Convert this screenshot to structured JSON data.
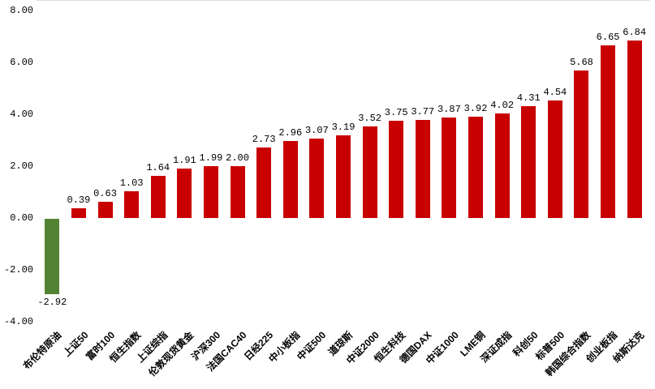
{
  "chart_data": {
    "type": "bar",
    "title": "",
    "xlabel": "",
    "ylabel": "",
    "categories": [
      "布伦特原油",
      "上证50",
      "富时100",
      "恒生指数",
      "上证综指",
      "伦敦现货黄金",
      "沪深300",
      "法国CAC40",
      "日经225",
      "中小板指",
      "中证500",
      "道琼斯",
      "中证2000",
      "恒生科技",
      "德国DAX",
      "中证1000",
      "LME铜",
      "深证成指",
      "科创50",
      "标普500",
      "韩国综合指数",
      "创业板指",
      "纳斯达克"
    ],
    "values": [
      -2.92,
      0.39,
      0.63,
      1.03,
      1.64,
      1.91,
      1.99,
      2.0,
      2.73,
      2.96,
      3.07,
      3.19,
      3.52,
      3.75,
      3.77,
      3.87,
      3.92,
      4.02,
      4.31,
      4.54,
      5.68,
      6.65,
      6.84
    ],
    "ylim": [
      -4,
      8
    ],
    "yticks": [
      8,
      6,
      4,
      2,
      0,
      -2,
      -4
    ],
    "ytick_decimals": 2,
    "value_label_decimals": 2,
    "grid": "zero-baseline-only",
    "legend": "none",
    "colors": {
      "positive_bar": "#c80000",
      "negative_bar": "#548235",
      "baseline": "#d9d9d9",
      "text": "#000000",
      "background": "#ffffff"
    }
  }
}
